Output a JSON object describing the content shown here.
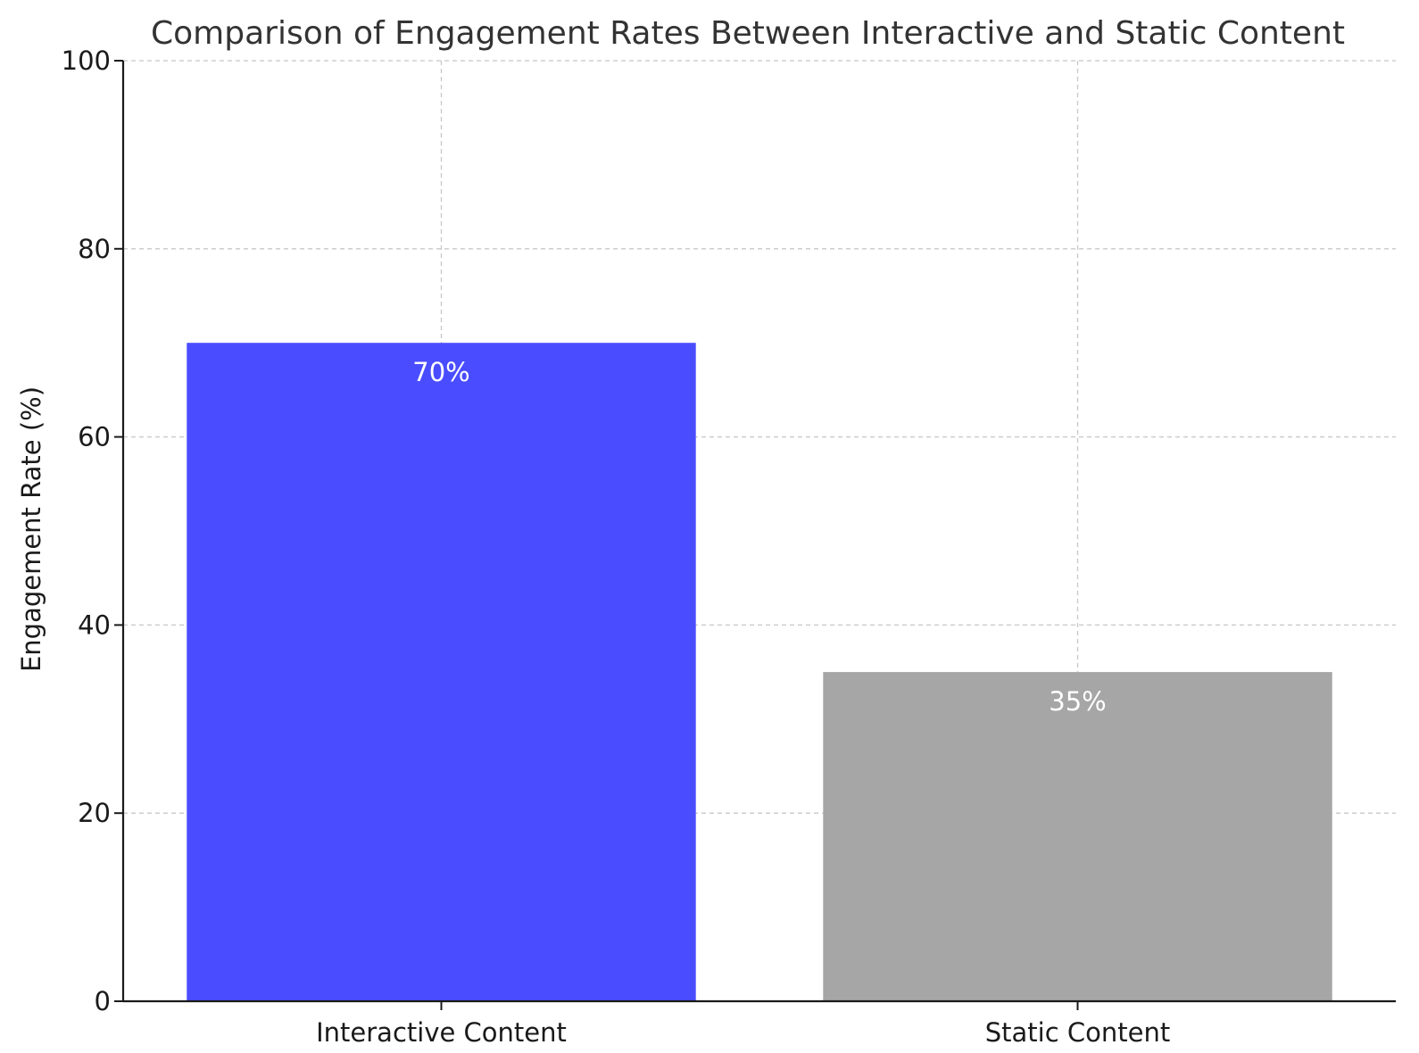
{
  "chart_data": {
    "type": "bar",
    "title": "Comparison of Engagement Rates Between Interactive and Static Content",
    "xlabel": "",
    "ylabel": "Engagement Rate (%)",
    "categories": [
      "Interactive Content",
      "Static Content"
    ],
    "values": [
      70,
      35
    ],
    "data_labels": [
      "70%",
      "35%"
    ],
    "colors": [
      "#4a4dff",
      "#a6a6a6"
    ],
    "ylim": [
      0,
      100
    ],
    "yticks": [
      0,
      20,
      40,
      60,
      80,
      100
    ],
    "grid": true
  }
}
